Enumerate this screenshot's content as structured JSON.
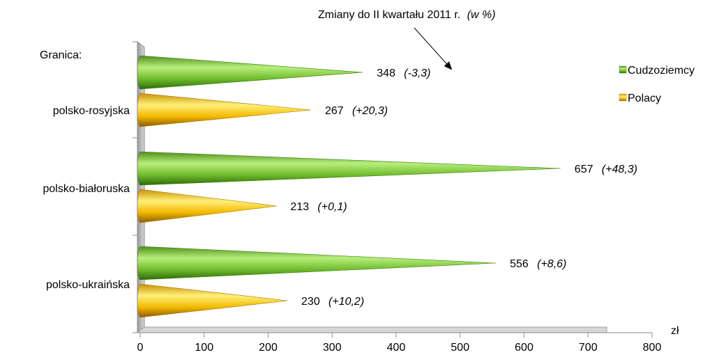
{
  "chart_data": {
    "type": "bar",
    "orientation": "horizontal",
    "style": "3d-cone",
    "y_axis_title": "Granica:",
    "xlabel": "zł",
    "xlim": [
      0,
      800
    ],
    "x_ticks": [
      "0",
      "100",
      "200",
      "300",
      "400",
      "500",
      "600",
      "700",
      "800"
    ],
    "grid": false,
    "categories": [
      "polsko-rosyjska",
      "polsko-białoruska",
      "polsko-ukraińska"
    ],
    "series": [
      {
        "name": "Cudzoziemcy",
        "color": "#7ec63a",
        "values": [
          348,
          657,
          556
        ],
        "value_labels": [
          "348",
          "657",
          "556"
        ],
        "change_labels": [
          "(-3,3)",
          "(+48,3)",
          "(+8,6)"
        ]
      },
      {
        "name": "Polacy",
        "color": "#f2b800",
        "values": [
          267,
          213,
          230
        ],
        "value_labels": [
          "267",
          "213",
          "230"
        ],
        "change_labels": [
          "(+20,3)",
          "(+0,1)",
          "(+10,2)"
        ]
      }
    ],
    "annotation": {
      "text": "Zmiany do II kwartału 2011 r.",
      "italic_suffix": "(w %)",
      "points_to": "348 (-3,3)"
    },
    "legend_position": "right"
  }
}
